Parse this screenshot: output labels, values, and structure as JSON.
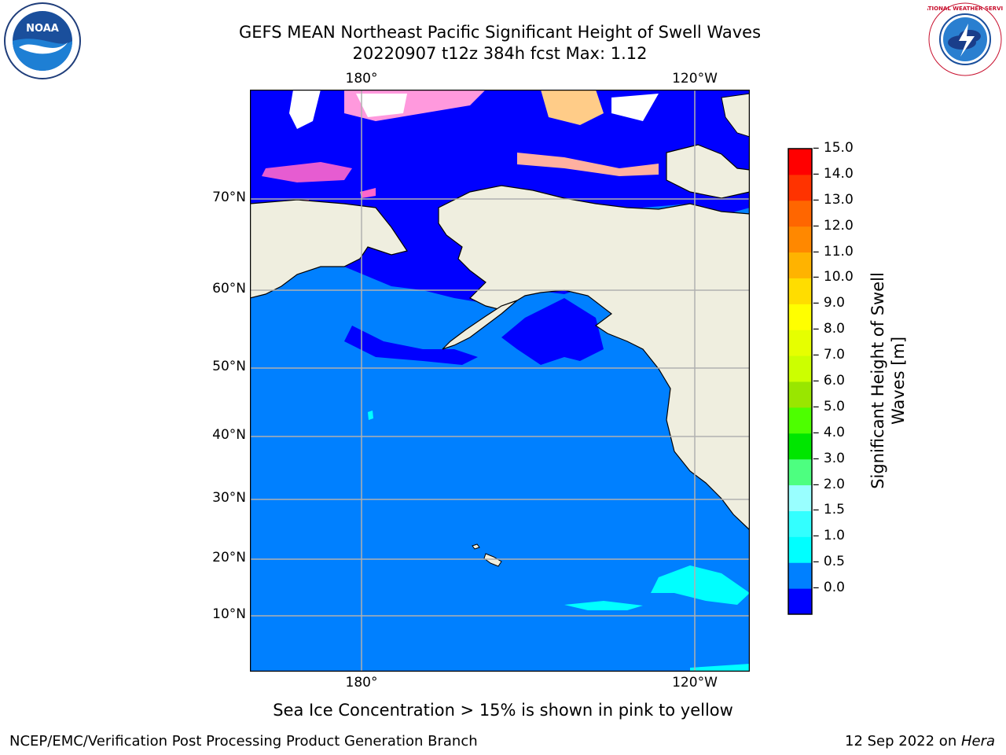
{
  "title_line1": "GEFS MEAN Northeast Pacific Significant Height of Swell Waves",
  "title_line2": "20220907 t12z 384h fcst   Max: 1.12",
  "lon_labels": [
    "180°",
    "120°W"
  ],
  "lat_labels": [
    "70°N",
    "60°N",
    "50°N",
    "40°N",
    "30°N",
    "20°N",
    "10°N"
  ],
  "colorbar": {
    "label_line1": "Significant Height of Swell",
    "label_line2": "Waves [m]",
    "ticks": [
      "15.0",
      "14.0",
      "13.0",
      "12.0",
      "11.0",
      "10.0",
      "9.0",
      "8.0",
      "7.0",
      "6.0",
      "5.0",
      "4.0",
      "3.0",
      "2.0",
      "1.5",
      "1.0",
      "0.5",
      "0.0"
    ],
    "colors": [
      "#0000ff",
      "#0080ff",
      "#00ffff",
      "#33ffff",
      "#99ffff",
      "#4dff80",
      "#00e600",
      "#4dff00",
      "#99e600",
      "#ccff00",
      "#e6ff00",
      "#ffff00",
      "#ffdd00",
      "#ffb300",
      "#ff8800",
      "#ff6600",
      "#ff3300",
      "#ff0000"
    ]
  },
  "caption": "Sea Ice Concentration > 15% is shown in pink to yellow",
  "credit": "NCEP/EMC/Verification Post Processing Product Generation Branch",
  "date_text": "12 Sep 2022 on ",
  "date_host": "Hera",
  "logos": {
    "noaa_text": "NOAA",
    "nws_text": "NATIONAL WEATHER SERVICE"
  },
  "colors": {
    "land": "#efeedf",
    "ocean_main": "#0080ff",
    "ocean_low": "#0000ff",
    "grid": "#b0b0b0"
  }
}
